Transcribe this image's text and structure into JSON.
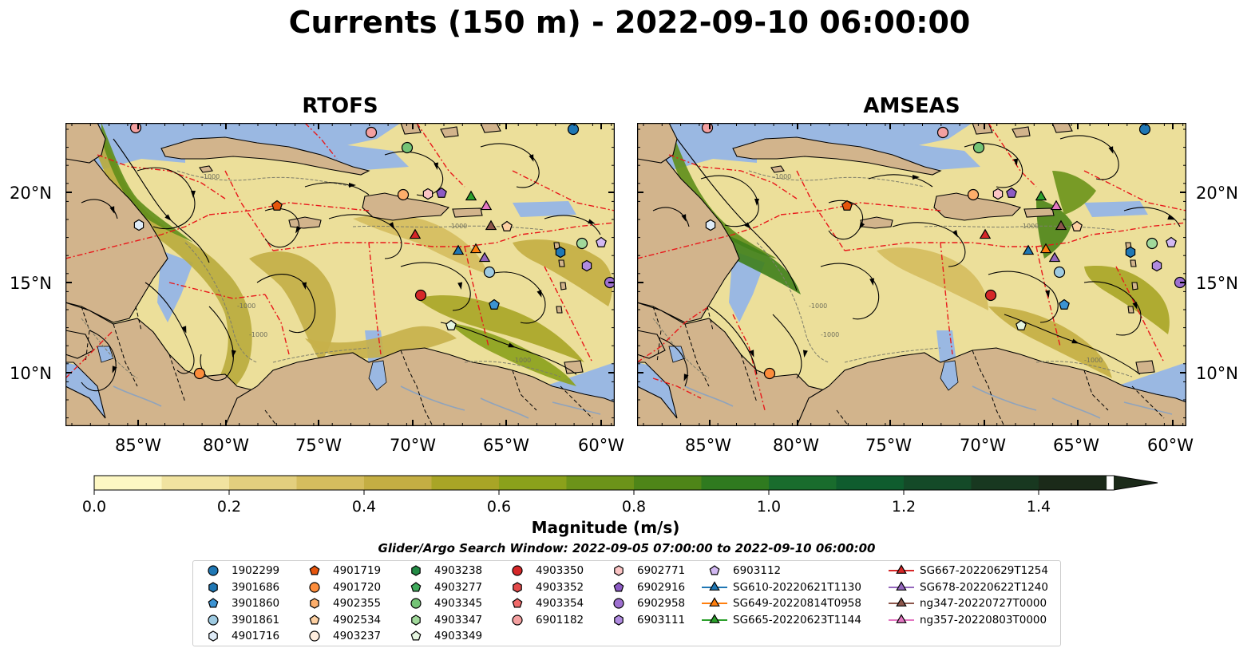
{
  "title": "Currents (150 m) - 2022-09-10 06:00:00",
  "panels": [
    {
      "title": "RTOFS"
    },
    {
      "title": "AMSEAS"
    }
  ],
  "lat_ticks": [
    "20°N",
    "15°N",
    "10°N"
  ],
  "lon_ticks": [
    "85°W",
    "80°W",
    "75°W",
    "70°W",
    "65°W",
    "60°W"
  ],
  "isobath_label": "-1000",
  "colorbar": {
    "label": "Magnitude (m/s)",
    "ticks": [
      "0.0",
      "0.2",
      "0.4",
      "0.6",
      "0.8",
      "1.0",
      "1.2",
      "1.4"
    ],
    "colors": [
      "#fdf7c3",
      "#f1e3a0",
      "#e3cf7e",
      "#d5bd5e",
      "#c4ae43",
      "#a9a526",
      "#8ba11b",
      "#6c9319",
      "#4e8518",
      "#2f7a1f",
      "#196c2d",
      "#0f5c2e",
      "#144a28",
      "#183820",
      "#1b2a19"
    ],
    "extend": "max"
  },
  "search_window": "Glider/Argo Search Window: 2022-09-05 07:00:00 to 2022-09-10 06:00:00",
  "legend": {
    "columns": [
      [
        {
          "label": "1902299",
          "marker": "circle",
          "color": "#1f77b4"
        },
        {
          "label": "3901686",
          "marker": "hexagon",
          "color": "#1f77b4"
        },
        {
          "label": "3901860",
          "marker": "pentagon",
          "color": "#3c93d2"
        },
        {
          "label": "3901861",
          "marker": "circle",
          "color": "#9ecae1"
        },
        {
          "label": "4901716",
          "marker": "hexagon",
          "color": "#deebf7"
        }
      ],
      [
        {
          "label": "4901719",
          "marker": "pentagon",
          "color": "#e6550d"
        },
        {
          "label": "4901720",
          "marker": "circle",
          "color": "#fd8d3c"
        },
        {
          "label": "4902355",
          "marker": "hexagon",
          "color": "#fdae6b"
        },
        {
          "label": "4902534",
          "marker": "pentagon",
          "color": "#fdd0a2"
        },
        {
          "label": "4903237",
          "marker": "circle",
          "color": "#feedde"
        }
      ],
      [
        {
          "label": "4903238",
          "marker": "hexagon",
          "color": "#238b45"
        },
        {
          "label": "4903277",
          "marker": "pentagon",
          "color": "#41ab5d"
        },
        {
          "label": "4903345",
          "marker": "circle",
          "color": "#74c476"
        },
        {
          "label": "4903347",
          "marker": "hexagon",
          "color": "#a1d99b"
        },
        {
          "label": "4903349",
          "marker": "pentagon",
          "color": "#e5f5e0"
        }
      ],
      [
        {
          "label": "4903350",
          "marker": "circle",
          "color": "#d62728"
        },
        {
          "label": "4903352",
          "marker": "hexagon",
          "color": "#e34a4a"
        },
        {
          "label": "4903354",
          "marker": "pentagon",
          "color": "#f06a6a"
        },
        {
          "label": "6901182",
          "marker": "circle",
          "color": "#f4a0a0"
        }
      ],
      [
        {
          "label": "6902771",
          "marker": "hexagon",
          "color": "#fbc4c4"
        },
        {
          "label": "6902916",
          "marker": "pentagon",
          "color": "#8c5bc4"
        },
        {
          "label": "6902958",
          "marker": "circle",
          "color": "#9e70d0"
        },
        {
          "label": "6903111",
          "marker": "hexagon",
          "color": "#b08be0"
        }
      ],
      [
        {
          "label": "6903112",
          "marker": "pentagon",
          "color": "#d2b8f2"
        },
        {
          "label": "SG610-20220621T1130",
          "marker": "triangle",
          "color": "#1f77b4"
        },
        {
          "label": "SG649-20220814T0958",
          "marker": "triangle",
          "color": "#ff7f0e"
        },
        {
          "label": "SG665-20220623T1144",
          "marker": "triangle",
          "color": "#2ca02c"
        }
      ],
      [
        {
          "label": "SG667-20220629T1254",
          "marker": "triangle",
          "color": "#d62728"
        },
        {
          "label": "SG678-20220622T1240",
          "marker": "triangle",
          "color": "#9467bd"
        },
        {
          "label": "ng347-20220727T0000",
          "marker": "triangle",
          "color": "#8c564b"
        },
        {
          "label": "ng357-20220803T0000",
          "marker": "triangle",
          "color": "#e377c2"
        }
      ]
    ]
  },
  "map_colors": {
    "land": "#d2b48c",
    "ocean_shallow": "#9ab8e2",
    "eez_lines": "#e8191b",
    "streamlines": "#000000"
  }
}
